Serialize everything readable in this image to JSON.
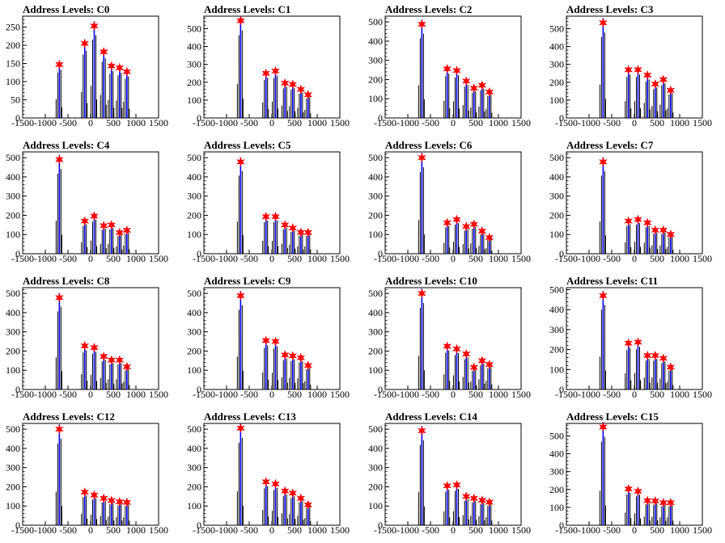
{
  "colors": {
    "histogram": "#000000",
    "peak_lines": "#0000ff",
    "peak_markers": "#ff0000",
    "axes": "#000000"
  },
  "chart_data": [
    {
      "type": "histogram",
      "title": "Address Levels: C0",
      "xlim": [
        -1500,
        1500
      ],
      "ylim": [
        0,
        280
      ],
      "yticks": [
        0,
        50,
        100,
        150,
        200,
        250
      ],
      "xticks": [
        -1500,
        -1000,
        -500,
        0,
        500,
        1000,
        1500
      ],
      "x_tick_labels": [
        "-1500",
        "-1000",
        "-500",
        "0",
        "500",
        "1000",
        "1500"
      ],
      "peaks": [
        {
          "x": -690,
          "y": 147
        },
        {
          "x": -130,
          "y": 205
        },
        {
          "x": 80,
          "y": 253
        },
        {
          "x": 290,
          "y": 182
        },
        {
          "x": 460,
          "y": 143
        },
        {
          "x": 640,
          "y": 138
        },
        {
          "x": 800,
          "y": 127
        }
      ]
    },
    {
      "type": "histogram",
      "title": "Address Levels: C1",
      "xlim": [
        -1500,
        1500
      ],
      "ylim": [
        0,
        570
      ],
      "yticks": [
        0,
        100,
        200,
        300,
        400,
        500
      ],
      "xticks": [
        -1500,
        -1000,
        -500,
        0,
        500,
        1000,
        1500
      ],
      "x_tick_labels": [
        "-1500",
        "-1000",
        "-500",
        "0",
        "500",
        "1000",
        "1500"
      ],
      "peaks": [
        {
          "x": -690,
          "y": 545
        },
        {
          "x": -130,
          "y": 250
        },
        {
          "x": 80,
          "y": 263
        },
        {
          "x": 290,
          "y": 195
        },
        {
          "x": 460,
          "y": 188
        },
        {
          "x": 640,
          "y": 160
        },
        {
          "x": 800,
          "y": 130
        }
      ]
    },
    {
      "type": "histogram",
      "title": "Address Levels: C2",
      "xlim": [
        -1500,
        1500
      ],
      "ylim": [
        0,
        530
      ],
      "yticks": [
        0,
        100,
        200,
        300,
        400,
        500
      ],
      "xticks": [
        -1500,
        -1000,
        -500,
        0,
        500,
        1000,
        1500
      ],
      "x_tick_labels": [
        "-1500",
        "-1000",
        "-500",
        "0",
        "500",
        "1000",
        "1500"
      ],
      "peaks": [
        {
          "x": -690,
          "y": 488
        },
        {
          "x": -130,
          "y": 256
        },
        {
          "x": 80,
          "y": 247
        },
        {
          "x": 290,
          "y": 192
        },
        {
          "x": 460,
          "y": 155
        },
        {
          "x": 640,
          "y": 170
        },
        {
          "x": 800,
          "y": 135
        }
      ]
    },
    {
      "type": "histogram",
      "title": "Address Levels: C3",
      "xlim": [
        -1500,
        1500
      ],
      "ylim": [
        0,
        570
      ],
      "yticks": [
        0,
        100,
        200,
        300,
        400,
        500
      ],
      "xticks": [
        -1500,
        -1000,
        -500,
        0,
        500,
        1000,
        1500
      ],
      "x_tick_labels": [
        "-1500",
        "-1000",
        "-500",
        "0",
        "500",
        "1000",
        "1500"
      ],
      "peaks": [
        {
          "x": -690,
          "y": 533
        },
        {
          "x": -130,
          "y": 270
        },
        {
          "x": 80,
          "y": 270
        },
        {
          "x": 290,
          "y": 240
        },
        {
          "x": 460,
          "y": 190
        },
        {
          "x": 640,
          "y": 215
        },
        {
          "x": 800,
          "y": 155
        }
      ]
    },
    {
      "type": "histogram",
      "title": "Address Levels: C4",
      "xlim": [
        -1500,
        1500
      ],
      "ylim": [
        0,
        530
      ],
      "yticks": [
        0,
        100,
        200,
        300,
        400,
        500
      ],
      "xticks": [
        -1500,
        -1000,
        -500,
        0,
        500,
        1000,
        1500
      ],
      "x_tick_labels": [
        "-1500",
        "-1000",
        "-500",
        "0",
        "500",
        "1000",
        "1500"
      ],
      "peaks": [
        {
          "x": -690,
          "y": 490
        },
        {
          "x": -130,
          "y": 170
        },
        {
          "x": 80,
          "y": 196
        },
        {
          "x": 290,
          "y": 146
        },
        {
          "x": 460,
          "y": 150
        },
        {
          "x": 640,
          "y": 110
        },
        {
          "x": 800,
          "y": 122
        }
      ]
    },
    {
      "type": "histogram",
      "title": "Address Levels: C5",
      "xlim": [
        -1500,
        1500
      ],
      "ylim": [
        0,
        530
      ],
      "yticks": [
        0,
        100,
        200,
        300,
        400,
        500
      ],
      "xticks": [
        -1500,
        -1000,
        -500,
        0,
        500,
        1000,
        1500
      ],
      "x_tick_labels": [
        "-1500",
        "-1000",
        "-500",
        "0",
        "500",
        "1000",
        "1500"
      ],
      "peaks": [
        {
          "x": -690,
          "y": 478
        },
        {
          "x": -130,
          "y": 193
        },
        {
          "x": 80,
          "y": 193
        },
        {
          "x": 290,
          "y": 150
        },
        {
          "x": 460,
          "y": 134
        },
        {
          "x": 640,
          "y": 111
        },
        {
          "x": 800,
          "y": 111
        }
      ]
    },
    {
      "type": "histogram",
      "title": "Address Levels: C6",
      "xlim": [
        -1500,
        1500
      ],
      "ylim": [
        0,
        530
      ],
      "yticks": [
        0,
        100,
        200,
        300,
        400,
        500
      ],
      "xticks": [
        -1500,
        -1000,
        -500,
        0,
        500,
        1000,
        1500
      ],
      "x_tick_labels": [
        "-1500",
        "-1000",
        "-500",
        "0",
        "500",
        "1000",
        "1500"
      ],
      "peaks": [
        {
          "x": -690,
          "y": 500
        },
        {
          "x": -130,
          "y": 161
        },
        {
          "x": 80,
          "y": 178
        },
        {
          "x": 290,
          "y": 142
        },
        {
          "x": 460,
          "y": 153
        },
        {
          "x": 640,
          "y": 118
        },
        {
          "x": 800,
          "y": 84
        }
      ]
    },
    {
      "type": "histogram",
      "title": "Address Levels: C7",
      "xlim": [
        -1500,
        1500
      ],
      "ylim": [
        0,
        530
      ],
      "yticks": [
        0,
        100,
        200,
        300,
        400,
        500
      ],
      "xticks": [
        -1500,
        -1000,
        -500,
        0,
        500,
        1000,
        1500
      ],
      "x_tick_labels": [
        "-1500",
        "-1000",
        "-500",
        "0",
        "500",
        "1000",
        "1500"
      ],
      "peaks": [
        {
          "x": -690,
          "y": 478
        },
        {
          "x": -130,
          "y": 170
        },
        {
          "x": 80,
          "y": 178
        },
        {
          "x": 290,
          "y": 161
        },
        {
          "x": 460,
          "y": 123
        },
        {
          "x": 640,
          "y": 123
        },
        {
          "x": 800,
          "y": 101
        }
      ]
    },
    {
      "type": "histogram",
      "title": "Address Levels: C8",
      "xlim": [
        -1500,
        1500
      ],
      "ylim": [
        0,
        530
      ],
      "yticks": [
        0,
        100,
        200,
        300,
        400,
        500
      ],
      "xticks": [
        -1500,
        -1000,
        -500,
        0,
        500,
        1000,
        1500
      ],
      "x_tick_labels": [
        "-1500",
        "-1000",
        "-500",
        "0",
        "500",
        "1000",
        "1500"
      ],
      "peaks": [
        {
          "x": -690,
          "y": 478
        },
        {
          "x": -130,
          "y": 227
        },
        {
          "x": 80,
          "y": 218
        },
        {
          "x": 290,
          "y": 172
        },
        {
          "x": 460,
          "y": 153
        },
        {
          "x": 640,
          "y": 153
        },
        {
          "x": 800,
          "y": 118
        }
      ]
    },
    {
      "type": "histogram",
      "title": "Address Levels: C9",
      "xlim": [
        -1500,
        1500
      ],
      "ylim": [
        0,
        530
      ],
      "yticks": [
        0,
        100,
        200,
        300,
        400,
        500
      ],
      "xticks": [
        -1500,
        -1000,
        -500,
        0,
        500,
        1000,
        1500
      ],
      "x_tick_labels": [
        "-1500",
        "-1000",
        "-500",
        "0",
        "500",
        "1000",
        "1500"
      ],
      "peaks": [
        {
          "x": -690,
          "y": 488
        },
        {
          "x": -130,
          "y": 255
        },
        {
          "x": 80,
          "y": 250
        },
        {
          "x": 290,
          "y": 180
        },
        {
          "x": 460,
          "y": 175
        },
        {
          "x": 640,
          "y": 165
        },
        {
          "x": 800,
          "y": 125
        }
      ]
    },
    {
      "type": "histogram",
      "title": "Address Levels: C10",
      "xlim": [
        -1500,
        1500
      ],
      "ylim": [
        0,
        530
      ],
      "yticks": [
        0,
        100,
        200,
        300,
        400,
        500
      ],
      "xticks": [
        -1500,
        -1000,
        -500,
        0,
        500,
        1000,
        1500
      ],
      "x_tick_labels": [
        "-1500",
        "-1000",
        "-500",
        "0",
        "500",
        "1000",
        "1500"
      ],
      "peaks": [
        {
          "x": -690,
          "y": 500
        },
        {
          "x": -130,
          "y": 225
        },
        {
          "x": 80,
          "y": 211
        },
        {
          "x": 290,
          "y": 185
        },
        {
          "x": 460,
          "y": 115
        },
        {
          "x": 640,
          "y": 150
        },
        {
          "x": 800,
          "y": 130
        }
      ]
    },
    {
      "type": "histogram",
      "title": "Address Levels: C11",
      "xlim": [
        -1500,
        1500
      ],
      "ylim": [
        0,
        510
      ],
      "yticks": [
        0,
        100,
        200,
        300,
        400,
        500
      ],
      "xticks": [
        -1500,
        -1000,
        -500,
        0,
        500,
        1000,
        1500
      ],
      "x_tick_labels": [
        "-1500",
        "-1000",
        "-500",
        "0",
        "500",
        "1000",
        "1500"
      ],
      "peaks": [
        {
          "x": -690,
          "y": 470
        },
        {
          "x": -130,
          "y": 232
        },
        {
          "x": 80,
          "y": 237
        },
        {
          "x": 290,
          "y": 170
        },
        {
          "x": 460,
          "y": 170
        },
        {
          "x": 640,
          "y": 156
        },
        {
          "x": 800,
          "y": 112
        }
      ]
    },
    {
      "type": "histogram",
      "title": "Address Levels: C12",
      "xlim": [
        -1500,
        1500
      ],
      "ylim": [
        0,
        530
      ],
      "yticks": [
        0,
        100,
        200,
        300,
        400,
        500
      ],
      "xticks": [
        -1500,
        -1000,
        -500,
        0,
        500,
        1000,
        1500
      ],
      "x_tick_labels": [
        "-1500",
        "-1000",
        "-500",
        "0",
        "500",
        "1000",
        "1500"
      ],
      "peaks": [
        {
          "x": -690,
          "y": 500
        },
        {
          "x": -130,
          "y": 172
        },
        {
          "x": 80,
          "y": 157
        },
        {
          "x": 290,
          "y": 140
        },
        {
          "x": 460,
          "y": 129
        },
        {
          "x": 640,
          "y": 122
        },
        {
          "x": 800,
          "y": 119
        }
      ]
    },
    {
      "type": "histogram",
      "title": "Address Levels: C13",
      "xlim": [
        -1500,
        1500
      ],
      "ylim": [
        0,
        530
      ],
      "yticks": [
        0,
        100,
        200,
        300,
        400,
        500
      ],
      "xticks": [
        -1500,
        -1000,
        -500,
        0,
        500,
        1000,
        1500
      ],
      "x_tick_labels": [
        "-1500",
        "-1000",
        "-500",
        "0",
        "500",
        "1000",
        "1500"
      ],
      "peaks": [
        {
          "x": -690,
          "y": 505
        },
        {
          "x": -130,
          "y": 226
        },
        {
          "x": 80,
          "y": 215
        },
        {
          "x": 290,
          "y": 178
        },
        {
          "x": 460,
          "y": 167
        },
        {
          "x": 640,
          "y": 140
        },
        {
          "x": 800,
          "y": 106
        }
      ]
    },
    {
      "type": "histogram",
      "title": "Address Levels: C14",
      "xlim": [
        -1500,
        1500
      ],
      "ylim": [
        0,
        530
      ],
      "yticks": [
        0,
        100,
        200,
        300,
        400,
        500
      ],
      "xticks": [
        -1500,
        -1000,
        -500,
        0,
        500,
        1000,
        1500
      ],
      "x_tick_labels": [
        "-1500",
        "-1000",
        "-500",
        "0",
        "500",
        "1000",
        "1500"
      ],
      "peaks": [
        {
          "x": -690,
          "y": 492
        },
        {
          "x": -130,
          "y": 205
        },
        {
          "x": 80,
          "y": 210
        },
        {
          "x": 290,
          "y": 150
        },
        {
          "x": 460,
          "y": 140
        },
        {
          "x": 640,
          "y": 130
        },
        {
          "x": 800,
          "y": 120
        }
      ]
    },
    {
      "type": "histogram",
      "title": "Address Levels: C15",
      "xlim": [
        -1500,
        1500
      ],
      "ylim": [
        0,
        570
      ],
      "yticks": [
        0,
        100,
        200,
        300,
        400,
        500
      ],
      "xticks": [
        -1500,
        -1000,
        -500,
        0,
        500,
        1000,
        1500
      ],
      "x_tick_labels": [
        "-1500",
        "-1000",
        "-500",
        "0",
        "500",
        "1000",
        "1500"
      ],
      "peaks": [
        {
          "x": -690,
          "y": 550
        },
        {
          "x": -130,
          "y": 203
        },
        {
          "x": 80,
          "y": 190
        },
        {
          "x": 290,
          "y": 138
        },
        {
          "x": 460,
          "y": 136
        },
        {
          "x": 640,
          "y": 126
        },
        {
          "x": 800,
          "y": 126
        }
      ]
    }
  ]
}
